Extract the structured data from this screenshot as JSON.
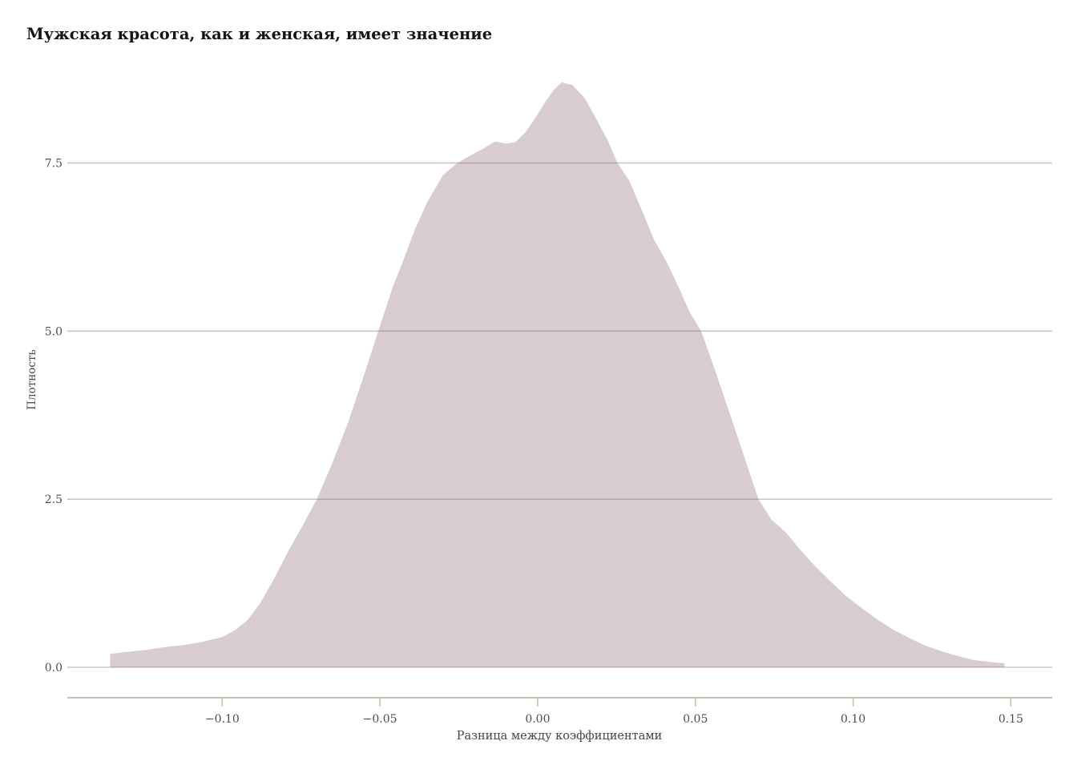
{
  "chart_data": {
    "type": "area",
    "title": "Мужская красота, как и женская, имеет значение",
    "xlabel": "Разница между коэффициентами",
    "ylabel": "Плотность",
    "x_ticks": [
      -0.1,
      -0.05,
      0.0,
      0.05,
      0.1,
      0.15
    ],
    "x_tick_labels": [
      "−0.10",
      "−0.05",
      "0.00",
      "0.05",
      "0.10",
      "0.15"
    ],
    "y_ticks": [
      0.0,
      2.5,
      5.0,
      7.5
    ],
    "y_tick_labels": [
      "0.0",
      "2.5",
      "5.0",
      "7.5"
    ],
    "xlim": [
      -0.1491,
      0.1631
    ],
    "ylim": [
      0,
      8.9
    ],
    "grid": true,
    "legend": false,
    "fill_color": "#d8ccd1",
    "grid_color": "#8a6f5a",
    "grid_opacity": 0.4,
    "axis_color": "#c9c0b3",
    "series": [
      {
        "name": "density",
        "points": [
          [
            -0.1355,
            0.2
          ],
          [
            -0.13,
            0.23
          ],
          [
            -0.124,
            0.26
          ],
          [
            -0.118,
            0.3
          ],
          [
            -0.112,
            0.33
          ],
          [
            -0.106,
            0.38
          ],
          [
            -0.1,
            0.45
          ],
          [
            -0.096,
            0.55
          ],
          [
            -0.092,
            0.7
          ],
          [
            -0.088,
            0.95
          ],
          [
            -0.084,
            1.28
          ],
          [
            -0.079,
            1.73
          ],
          [
            -0.074,
            2.15
          ],
          [
            -0.07,
            2.5
          ],
          [
            -0.065,
            3.05
          ],
          [
            -0.06,
            3.65
          ],
          [
            -0.055,
            4.35
          ],
          [
            -0.0505,
            5.0
          ],
          [
            -0.046,
            5.65
          ],
          [
            -0.043,
            6.0
          ],
          [
            -0.039,
            6.5
          ],
          [
            -0.035,
            6.92
          ],
          [
            -0.03,
            7.32
          ],
          [
            -0.0255,
            7.5
          ],
          [
            -0.021,
            7.62
          ],
          [
            -0.017,
            7.72
          ],
          [
            -0.0135,
            7.82
          ],
          [
            -0.01,
            7.79
          ],
          [
            -0.0071,
            7.81
          ],
          [
            -0.004,
            7.95
          ],
          [
            -0.001,
            8.15
          ],
          [
            0.0023,
            8.4
          ],
          [
            0.005,
            8.58
          ],
          [
            0.0076,
            8.7
          ],
          [
            0.011,
            8.66
          ],
          [
            0.015,
            8.46
          ],
          [
            0.019,
            8.12
          ],
          [
            0.022,
            7.86
          ],
          [
            0.0253,
            7.5
          ],
          [
            0.029,
            7.24
          ],
          [
            0.033,
            6.8
          ],
          [
            0.037,
            6.35
          ],
          [
            0.041,
            6.02
          ],
          [
            0.045,
            5.62
          ],
          [
            0.048,
            5.3
          ],
          [
            0.0518,
            5.0
          ],
          [
            0.056,
            4.45
          ],
          [
            0.06,
            3.9
          ],
          [
            0.065,
            3.2
          ],
          [
            0.07,
            2.5
          ],
          [
            0.074,
            2.2
          ],
          [
            0.0788,
            2.0
          ],
          [
            0.083,
            1.76
          ],
          [
            0.088,
            1.5
          ],
          [
            0.093,
            1.27
          ],
          [
            0.098,
            1.05
          ],
          [
            0.103,
            0.87
          ],
          [
            0.108,
            0.7
          ],
          [
            0.113,
            0.55
          ],
          [
            0.118,
            0.43
          ],
          [
            0.123,
            0.32
          ],
          [
            0.128,
            0.24
          ],
          [
            0.133,
            0.17
          ],
          [
            0.138,
            0.11
          ],
          [
            0.143,
            0.08
          ],
          [
            0.148,
            0.06
          ]
        ]
      }
    ]
  }
}
